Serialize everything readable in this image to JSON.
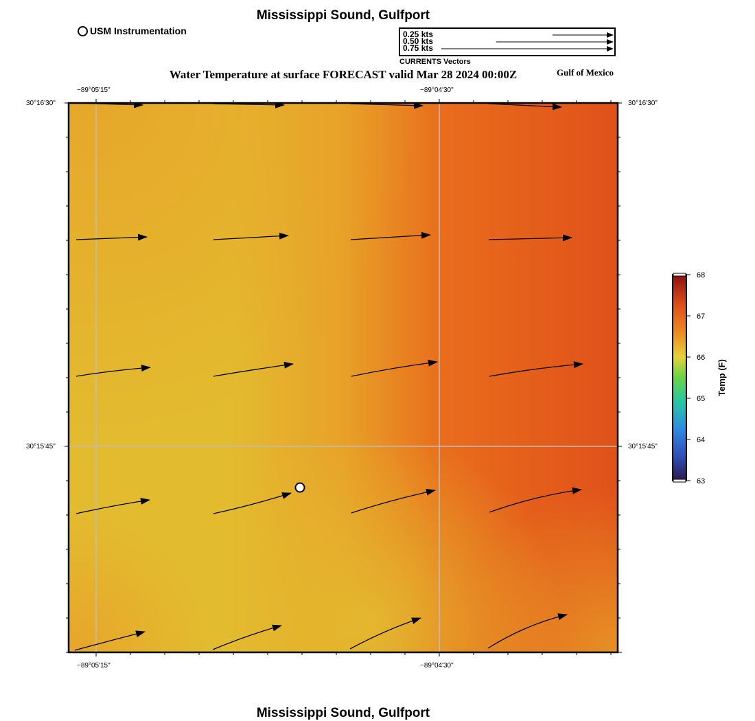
{
  "header": {
    "site_title": "Mississippi Sound, Gulfport",
    "main_title": "Water Temperature at surface FORECAST valid Mar 28 2024 00:00Z",
    "region_label": "Gulf of Mexico",
    "footer_title": "Mississippi Sound, Gulfport"
  },
  "legend": {
    "usm_label": "USM Instrumentation",
    "vector_scale": [
      {
        "label": "0.25 kts",
        "speed": 0.25
      },
      {
        "label": "0.50 kts",
        "speed": 0.5
      },
      {
        "label": "0.75 kts",
        "speed": 0.75
      }
    ],
    "vector_caption": "CURRENTS Vectors"
  },
  "map": {
    "lon_ticks": [
      "−89°05'15\"",
      "−89°04'30\""
    ],
    "lat_ticks": [
      "30°16'30\"",
      "30°15'45\""
    ],
    "station": {
      "name": "USM Instrumentation"
    }
  },
  "colorbar": {
    "label": "Temp (F)",
    "min": 63,
    "max": 68,
    "ticks": [
      "63",
      "64",
      "65",
      "66",
      "67",
      "68"
    ],
    "colors": [
      "#2b1a4e",
      "#2f6be0",
      "#27c6a8",
      "#69d445",
      "#e6d23a",
      "#ec8a24",
      "#e0501a",
      "#8a1010"
    ]
  },
  "surface_colors": {
    "light": "#e3bb2f",
    "mid": "#e8a128",
    "warm": "#e96d1c",
    "hot": "#e0511a"
  }
}
